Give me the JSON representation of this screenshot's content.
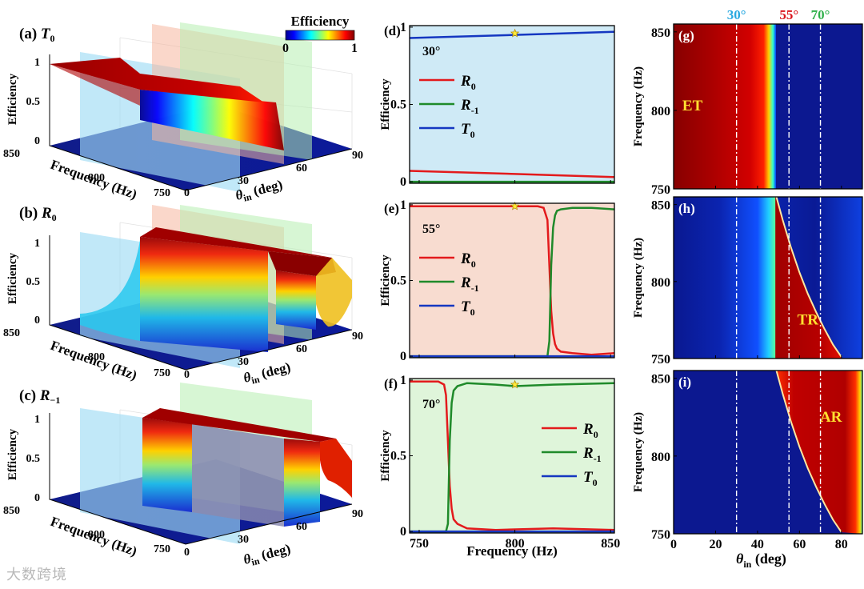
{
  "colorbar": {
    "title": "Efficiency",
    "min_label": "0",
    "max_label": "1"
  },
  "watermark": "大数跨境",
  "chart_data": [
    {
      "id": "a",
      "type": "surface3d",
      "label": "(a)",
      "title": "T",
      "title_sub": "0",
      "zlabel": "Efficiency",
      "ylabel": "Frequency (Hz)",
      "xlabel": "θ",
      "xlabel_sub": "in",
      "xlabel_unit": " (deg)",
      "z_ticks": [
        "0",
        "0.5",
        "1"
      ],
      "y_ticks": [
        "850",
        "800",
        "750"
      ],
      "x_ticks": [
        "0",
        "30",
        "60",
        "90"
      ],
      "planes_deg": [
        30,
        55,
        70
      ],
      "series": {
        "theta": [
          0,
          40,
          48,
          50,
          90
        ],
        "efficiency_750Hz": [
          1,
          1,
          1,
          0,
          0
        ],
        "efficiency_850Hz": [
          1,
          1,
          0.9,
          0,
          0
        ]
      }
    },
    {
      "id": "b",
      "type": "surface3d",
      "label": "(b)",
      "title": "R",
      "title_sub": "0",
      "zlabel": "Efficiency",
      "ylabel": "Frequency (Hz)",
      "xlabel": "θ",
      "xlabel_sub": "in",
      "xlabel_unit": " (deg)",
      "z_ticks": [
        "0",
        "0.5",
        "1"
      ],
      "y_ticks": [
        "850",
        "800",
        "750"
      ],
      "x_ticks": [
        "0",
        "30",
        "60",
        "90"
      ],
      "planes_deg": [
        30,
        55,
        70
      ],
      "series": {
        "theta": [
          0,
          40,
          48,
          55,
          70,
          90
        ],
        "efficiency_750Hz": [
          0,
          0,
          1,
          1,
          0.4,
          0
        ],
        "efficiency_850Hz": [
          0,
          0,
          1,
          0.9,
          0.9,
          0.8
        ]
      }
    },
    {
      "id": "c",
      "type": "surface3d",
      "label": "(c)",
      "title": "R",
      "title_sub": "−1",
      "zlabel": "Efficiency",
      "ylabel": "Frequency (Hz)",
      "xlabel": "θ",
      "xlabel_sub": "in",
      "xlabel_unit": " (deg)",
      "z_ticks": [
        "0",
        "0.5",
        "1"
      ],
      "y_ticks": [
        "850",
        "800",
        "750"
      ],
      "x_ticks": [
        "0",
        "30",
        "60",
        "90"
      ],
      "planes_deg": [
        30,
        55,
        70
      ],
      "series": {
        "theta": [
          0,
          48,
          55,
          75,
          90
        ],
        "efficiency_750Hz": [
          0,
          0,
          1,
          1,
          0
        ],
        "efficiency_850Hz": [
          0,
          0,
          0.2,
          1,
          0.9
        ]
      }
    },
    {
      "id": "d",
      "type": "line",
      "label": "(d)",
      "angle_label": "30°",
      "background": "#cfeaf6",
      "xlabel": "",
      "ylabel": "Efficiency",
      "xlim": [
        745,
        852
      ],
      "ylim": [
        -0.01,
        1.01
      ],
      "x_ticks": [
        750,
        800,
        850
      ],
      "y_ticks": [
        "0",
        "0.5",
        "1"
      ],
      "show_x_ticklabels": false,
      "legend": [
        {
          "name": "R",
          "sub": "0",
          "color": "#e31a1c"
        },
        {
          "name": "R",
          "sub": "-1",
          "color": "#1f8a2a"
        },
        {
          "name": "T",
          "sub": "0",
          "color": "#1537c1"
        }
      ],
      "legend_position": "left",
      "marker": {
        "x": 800,
        "y": 0.96
      },
      "series": [
        {
          "name": "R0",
          "color": "#e31a1c",
          "x": [
            745,
            800,
            852
          ],
          "y": [
            0.07,
            0.05,
            0.03
          ]
        },
        {
          "name": "R-1",
          "color": "#1f8a2a",
          "x": [
            745,
            852
          ],
          "y": [
            0.0,
            0.0
          ]
        },
        {
          "name": "T0",
          "color": "#1537c1",
          "x": [
            745,
            800,
            852
          ],
          "y": [
            0.93,
            0.95,
            0.97
          ]
        }
      ]
    },
    {
      "id": "e",
      "type": "line",
      "label": "(e)",
      "angle_label": "55°",
      "background": "#f8dcd0",
      "xlabel": "",
      "ylabel": "Efficiency",
      "xlim": [
        745,
        852
      ],
      "ylim": [
        -0.01,
        1.01
      ],
      "x_ticks": [
        750,
        800,
        850
      ],
      "y_ticks": [
        "0",
        "0.5",
        "1"
      ],
      "show_x_ticklabels": false,
      "legend": [
        {
          "name": "R",
          "sub": "0",
          "color": "#e31a1c"
        },
        {
          "name": "R",
          "sub": "-1",
          "color": "#1f8a2a"
        },
        {
          "name": "T",
          "sub": "0",
          "color": "#1537c1"
        }
      ],
      "legend_position": "left",
      "marker": {
        "x": 800,
        "y": 0.99
      },
      "series": [
        {
          "name": "R0",
          "color": "#e31a1c",
          "x": [
            745,
            800,
            812,
            815,
            817,
            818,
            819,
            820,
            821,
            822,
            824,
            830,
            840,
            852
          ],
          "y": [
            0.99,
            0.99,
            0.99,
            0.98,
            0.9,
            0.6,
            0.3,
            0.15,
            0.08,
            0.05,
            0.03,
            0.02,
            0.01,
            0.02
          ]
        },
        {
          "name": "R-1",
          "color": "#1f8a2a",
          "x": [
            745,
            817,
            818,
            819,
            820,
            821,
            822,
            824,
            830,
            840,
            852
          ],
          "y": [
            0,
            0,
            0.1,
            0.6,
            0.85,
            0.93,
            0.96,
            0.97,
            0.98,
            0.98,
            0.97
          ]
        },
        {
          "name": "T0",
          "color": "#1537c1",
          "x": [
            745,
            852
          ],
          "y": [
            0.0,
            0.0
          ]
        }
      ]
    },
    {
      "id": "f",
      "type": "line",
      "label": "(f)",
      "angle_label": "70°",
      "background": "#dff5da",
      "xlabel": "Frequency (Hz)",
      "ylabel": "Efficiency",
      "xlim": [
        745,
        852
      ],
      "ylim": [
        -0.01,
        1.01
      ],
      "x_ticks": [
        750,
        800,
        850
      ],
      "y_ticks": [
        "0",
        "0.5",
        "1"
      ],
      "show_x_ticklabels": true,
      "legend": [
        {
          "name": "R",
          "sub": "0",
          "color": "#e31a1c"
        },
        {
          "name": "R",
          "sub": "-1",
          "color": "#1f8a2a"
        },
        {
          "name": "T",
          "sub": "0",
          "color": "#1537c1"
        }
      ],
      "legend_position": "right",
      "marker": {
        "x": 800,
        "y": 0.97
      },
      "series": [
        {
          "name": "R0",
          "color": "#e31a1c",
          "x": [
            745,
            760,
            763,
            764,
            765,
            766,
            767,
            768,
            770,
            775,
            790,
            820,
            852
          ],
          "y": [
            0.99,
            0.99,
            0.97,
            0.9,
            0.6,
            0.3,
            0.15,
            0.08,
            0.05,
            0.02,
            0.01,
            0.02,
            0.01
          ]
        },
        {
          "name": "R-1",
          "color": "#1f8a2a",
          "x": [
            745,
            764,
            765,
            766,
            767,
            768,
            770,
            775,
            790,
            800,
            820,
            852
          ],
          "y": [
            0,
            0,
            0.05,
            0.6,
            0.85,
            0.93,
            0.96,
            0.98,
            0.97,
            0.96,
            0.97,
            0.98
          ]
        },
        {
          "name": "T0",
          "color": "#1537c1",
          "x": [
            745,
            852
          ],
          "y": [
            0.0,
            0.0
          ]
        }
      ]
    },
    {
      "id": "g",
      "type": "heatmap",
      "label": "(g)",
      "region_label": "ET",
      "xlabel": "θ",
      "xlabel_sub": "in",
      "xlabel_unit": " (deg)",
      "ylabel": "Frequency (Hz)",
      "xlim": [
        0,
        90
      ],
      "ylim": [
        750,
        855
      ],
      "x_ticks": [
        0,
        20,
        40,
        60,
        80
      ],
      "y_ticks": [
        750,
        800,
        850
      ],
      "show_x_ticklabels": false,
      "angle_markers": [
        {
          "deg": 30,
          "label": "30°",
          "color": "#28a8e0"
        },
        {
          "deg": 55,
          "label": "55°",
          "color": "#d9141c"
        },
        {
          "deg": 70,
          "label": "70°",
          "color": "#2fb04a"
        }
      ],
      "boundary": {
        "kind": "vertical",
        "theta": 48.5
      }
    },
    {
      "id": "h",
      "type": "heatmap",
      "label": "(h)",
      "region_label": "TR",
      "xlabel": "θ",
      "xlabel_sub": "in",
      "xlabel_unit": " (deg)",
      "ylabel": "Frequency (Hz)",
      "xlim": [
        0,
        90
      ],
      "ylim": [
        750,
        855
      ],
      "x_ticks": [
        0,
        20,
        40,
        60,
        80
      ],
      "y_ticks": [
        750,
        800,
        850
      ],
      "show_x_ticklabels": false,
      "angle_markers": [
        {
          "deg": 30
        },
        {
          "deg": 55
        },
        {
          "deg": 70
        }
      ],
      "boundary": {
        "kind": "curve",
        "theta": [
          49,
          52,
          56,
          60,
          64,
          68,
          72,
          76,
          80
        ],
        "freq": [
          855,
          840,
          822,
          806,
          792,
          780,
          769,
          759,
          751
        ]
      }
    },
    {
      "id": "i",
      "type": "heatmap",
      "label": "(i)",
      "region_label": "AR",
      "xlabel": "θ",
      "xlabel_sub": "in",
      "xlabel_unit": " (deg)",
      "ylabel": "Frequency (Hz)",
      "xlim": [
        0,
        90
      ],
      "ylim": [
        750,
        855
      ],
      "x_ticks": [
        0,
        20,
        40,
        60,
        80
      ],
      "y_ticks": [
        750,
        800,
        850
      ],
      "show_x_ticklabels": true,
      "angle_markers": [
        {
          "deg": 30
        },
        {
          "deg": 55
        },
        {
          "deg": 70
        }
      ],
      "boundary": {
        "kind": "curve",
        "theta": [
          49,
          52,
          56,
          60,
          64,
          68,
          72,
          76,
          80
        ],
        "freq": [
          855,
          840,
          822,
          806,
          792,
          780,
          769,
          759,
          751
        ]
      }
    }
  ]
}
